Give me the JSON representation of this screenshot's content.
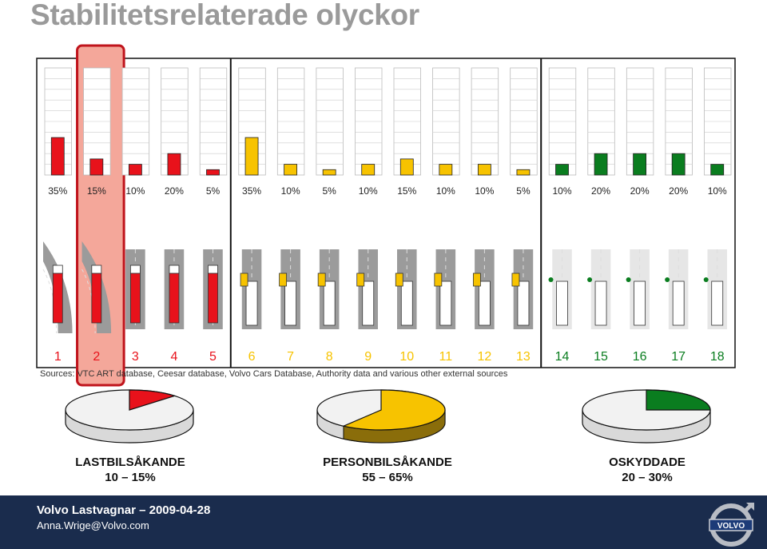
{
  "page": {
    "title": "Stabilitetsrelaterade olyckor",
    "sources": "Sources: VTC ART database, Ceesar database, Volvo Cars Database, Authority data and various other external sources",
    "footer_line1": "Volvo Lastvagnar – 2009-04-28",
    "footer_line2": "Anna.Wrige@Volvo.com",
    "logo_text": "VOLVO"
  },
  "colors": {
    "red": "#e8121b",
    "yellow": "#f7c300",
    "green": "#0a7d1f",
    "highlight_fill": "#f4a79a",
    "highlight_border": "#c0141c",
    "footer_bg": "#1a2c4d"
  },
  "chart_data": [
    {
      "type": "bar",
      "categories": [
        "1",
        "2",
        "3",
        "4",
        "5",
        "6",
        "7",
        "8",
        "9",
        "10",
        "11",
        "12",
        "13",
        "14",
        "15",
        "16",
        "17",
        "18"
      ],
      "values": [
        35,
        15,
        10,
        20,
        5,
        35,
        10,
        5,
        10,
        15,
        10,
        10,
        5,
        10,
        20,
        20,
        20,
        10
      ],
      "value_labels": [
        "35%",
        "15%",
        "10%",
        "20%",
        "5%",
        "35%",
        "10%",
        "5%",
        "10%",
        "15%",
        "10%",
        "10%",
        "5%",
        "10%",
        "20%",
        "20%",
        "20%",
        "10%"
      ],
      "groups": [
        "red",
        "red",
        "red",
        "red",
        "red",
        "yellow",
        "yellow",
        "yellow",
        "yellow",
        "yellow",
        "yellow",
        "yellow",
        "yellow",
        "green",
        "green",
        "green",
        "green",
        "green"
      ],
      "highlighted_category": "2",
      "ylim": [
        0,
        100
      ],
      "grid": true
    },
    {
      "type": "pie",
      "name": "LASTBILSÅKANDE",
      "range": "10 – 15%",
      "slice_percent": 12.5,
      "color": "red"
    },
    {
      "type": "pie",
      "name": "PERSONBILSÅKANDE",
      "range": "55 – 65%",
      "slice_percent": 60,
      "color": "yellow"
    },
    {
      "type": "pie",
      "name": "OSKYDDADE",
      "range": "20 – 30%",
      "slice_percent": 25,
      "color": "green"
    }
  ]
}
